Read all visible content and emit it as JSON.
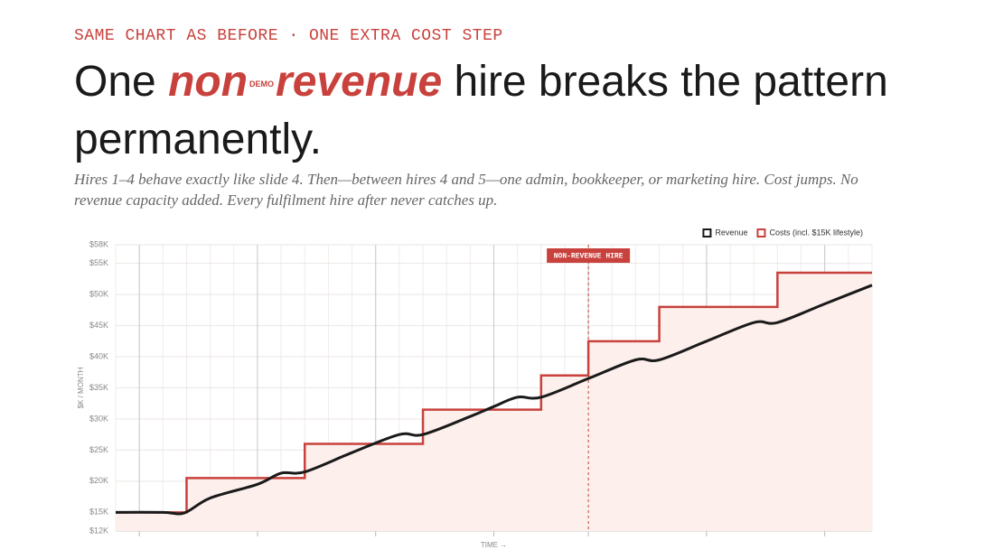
{
  "kicker": "SAME CHART AS BEFORE · ONE EXTRA COST STEP",
  "title": {
    "before": "One",
    "highlight_start": "non",
    "logo": "DEMO",
    "highlight_end": "revenue",
    "after": "hire breaks the pattern permanently."
  },
  "subtitle": "Hires 1–4 behave exactly like slide 4. Then—between hires 4 and 5—one admin, bookkeeper, or marketing hire. Cost jumps. No revenue capacity added. Every fulfilment hire after never catches up.",
  "chart_data": {
    "type": "line",
    "xlabel": "TIME →",
    "ylabel": "$K / MONTH",
    "xlim": [
      0,
      32
    ],
    "ylim": [
      12,
      58
    ],
    "xticks": [
      1,
      6,
      11,
      16,
      20,
      25,
      30
    ],
    "yticks": [
      {
        "value": 12,
        "label": "$12K"
      },
      {
        "value": 15,
        "label": "$15K"
      },
      {
        "value": 20,
        "label": "$20K"
      },
      {
        "value": 25,
        "label": "$25K"
      },
      {
        "value": 30,
        "label": "$30K"
      },
      {
        "value": 35,
        "label": "$35K"
      },
      {
        "value": 40,
        "label": "$40K"
      },
      {
        "value": 45,
        "label": "$45K"
      },
      {
        "value": 50,
        "label": "$50K"
      },
      {
        "value": 55,
        "label": "$55K"
      },
      {
        "value": 58,
        "label": "$58K"
      }
    ],
    "grid": true,
    "legend": "top-right",
    "series": [
      {
        "name": "Revenue",
        "color": "#1a1a1a",
        "x": [
          0,
          2,
          2.9,
          4,
          6,
          7,
          8,
          10,
          12,
          13,
          15,
          16,
          17,
          18,
          20,
          22,
          23,
          25,
          27,
          28,
          30,
          32
        ],
        "values": [
          15,
          15,
          14.9,
          17.3,
          19.5,
          21.3,
          21.5,
          24.6,
          27.5,
          27.5,
          30.4,
          32,
          33.5,
          33.5,
          36.5,
          39.5,
          39.5,
          42.5,
          45.5,
          45.5,
          48.5,
          51.5
        ]
      },
      {
        "name": "Costs (incl. $15K lifestyle)",
        "color": "#c8413c",
        "fill": "#fcefec",
        "x": [
          0,
          3,
          3,
          8,
          8,
          13,
          13,
          18,
          18,
          20,
          20,
          23,
          23,
          28,
          28,
          32
        ],
        "values": [
          15,
          15,
          20.5,
          20.5,
          26,
          26,
          31.5,
          31.5,
          37,
          37,
          42.5,
          42.5,
          48,
          48,
          53.5,
          53.5
        ]
      }
    ],
    "annotations": [
      {
        "text": "NON-REVENUE HIRE",
        "x": 20
      }
    ]
  }
}
